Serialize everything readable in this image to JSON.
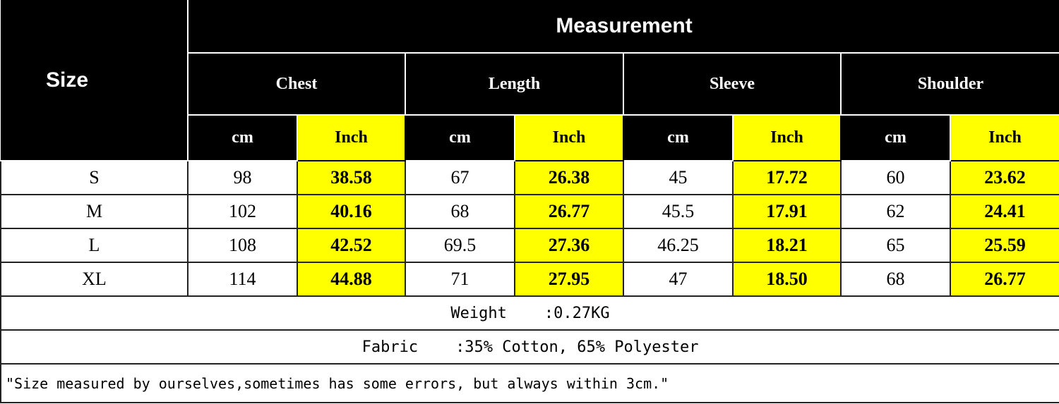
{
  "header": {
    "size_label": "Size",
    "measurement_label": "Measurement",
    "groups": [
      "Chest",
      "Length",
      "Sleeve",
      "Shoulder"
    ],
    "unit_cm": "cm",
    "unit_inch": "Inch"
  },
  "rows": [
    {
      "size": "S",
      "values": [
        "98",
        "38.58",
        "67",
        "26.38",
        "45",
        "17.72",
        "60",
        "23.62"
      ]
    },
    {
      "size": "M",
      "values": [
        "102",
        "40.16",
        "68",
        "26.77",
        "45.5",
        "17.91",
        "62",
        "24.41"
      ]
    },
    {
      "size": "L",
      "values": [
        "108",
        "42.52",
        "69.5",
        "27.36",
        "46.25",
        "18.21",
        "65",
        "25.59"
      ]
    },
    {
      "size": "XL",
      "values": [
        "114",
        "44.88",
        "71",
        "27.95",
        "47",
        "18.50",
        "68",
        "26.77"
      ]
    }
  ],
  "weight": {
    "label": "Weight",
    "value": ":0.27KG"
  },
  "fabric": {
    "label": "Fabric",
    "value": ":35% Cotton, 65% Polyester"
  },
  "note": "\"Size measured by ourselves,sometimes has some errors, but always within 3cm.\"",
  "colors": {
    "header_bg": "#000000",
    "inch_highlight": "#ffff00"
  }
}
